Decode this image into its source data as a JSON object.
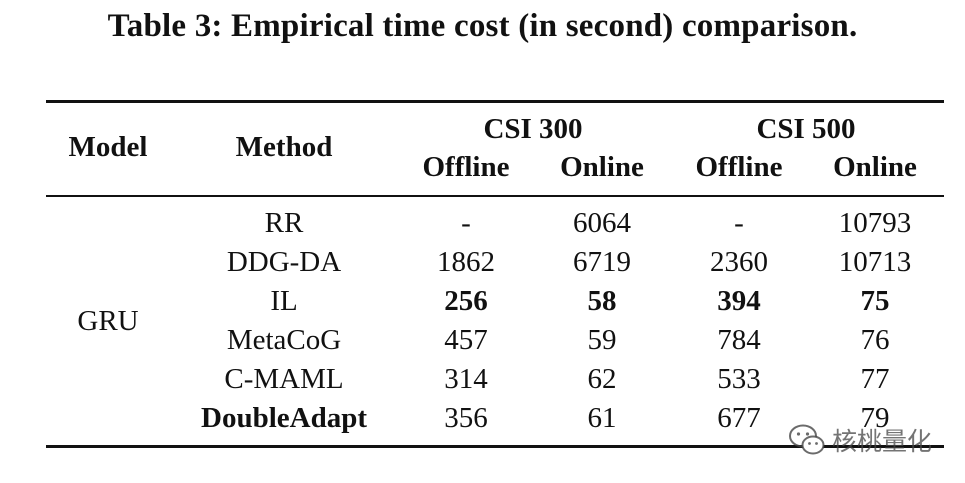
{
  "caption": "Table 3: Empirical time cost (in second) comparison.",
  "columns": {
    "model": "Model",
    "method": "Method",
    "groups": [
      {
        "name": "CSI 300",
        "sub": [
          "Offline",
          "Online"
        ]
      },
      {
        "name": "CSI 500",
        "sub": [
          "Offline",
          "Online"
        ]
      }
    ]
  },
  "model_value": "GRU",
  "rows": [
    {
      "method": "RR",
      "method_bold": false,
      "cells": [
        "-",
        "6064",
        "-",
        "10793"
      ],
      "bold": [
        false,
        false,
        false,
        false
      ]
    },
    {
      "method": "DDG-DA",
      "method_bold": false,
      "cells": [
        "1862",
        "6719",
        "2360",
        "10713"
      ],
      "bold": [
        false,
        false,
        false,
        false
      ]
    },
    {
      "method": "IL",
      "method_bold": false,
      "cells": [
        "256",
        "58",
        "394",
        "75"
      ],
      "bold": [
        true,
        true,
        true,
        true
      ]
    },
    {
      "method": "MetaCoG",
      "method_bold": false,
      "cells": [
        "457",
        "59",
        "784",
        "76"
      ],
      "bold": [
        false,
        false,
        false,
        false
      ]
    },
    {
      "method": "C-MAML",
      "method_bold": false,
      "cells": [
        "314",
        "62",
        "533",
        "77"
      ],
      "bold": [
        false,
        false,
        false,
        false
      ]
    },
    {
      "method": "DoubleAdapt",
      "method_bold": true,
      "cells": [
        "356",
        "61",
        "677",
        "79"
      ],
      "bold": [
        false,
        false,
        false,
        false
      ]
    }
  ],
  "watermark": {
    "text": "核桃量化",
    "icon": "wechat-icon"
  }
}
